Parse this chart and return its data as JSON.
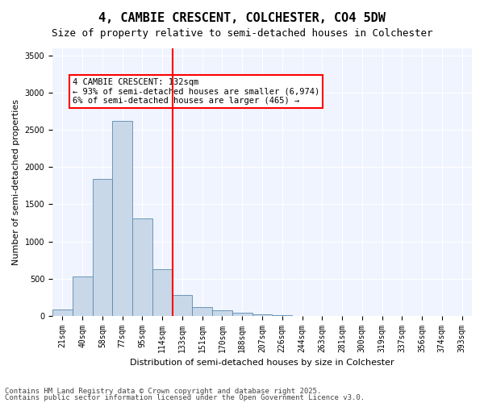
{
  "title1": "4, CAMBIE CRESCENT, COLCHESTER, CO4 5DW",
  "title2": "Size of property relative to semi-detached houses in Colchester",
  "xlabel": "Distribution of semi-detached houses by size in Colchester",
  "ylabel": "Number of semi-detached properties",
  "bar_color": "#c8d8e8",
  "bar_edge_color": "#5a8ab0",
  "categories": [
    "21sqm",
    "40sqm",
    "58sqm",
    "77sqm",
    "95sqm",
    "114sqm",
    "133sqm",
    "151sqm",
    "170sqm",
    "188sqm",
    "207sqm",
    "226sqm",
    "244sqm",
    "263sqm",
    "281sqm",
    "300sqm",
    "319sqm",
    "337sqm",
    "356sqm",
    "374sqm",
    "393sqm"
  ],
  "values": [
    80,
    530,
    1840,
    2620,
    1310,
    630,
    280,
    120,
    70,
    40,
    15,
    5,
    2,
    1,
    0,
    0,
    0,
    0,
    0,
    0,
    0
  ],
  "property_line_x": 6,
  "property_size": "132sqm",
  "annotation_text": "4 CAMBIE CRESCENT: 132sqm\n← 93% of semi-detached houses are smaller (6,974)\n6% of semi-detached houses are larger (465) →",
  "annotation_box_color": "white",
  "annotation_box_edge_color": "red",
  "vline_color": "red",
  "ylim": [
    0,
    3600
  ],
  "yticks": [
    0,
    500,
    1000,
    1500,
    2000,
    2500,
    3000,
    3500
  ],
  "background_color": "#f0f4ff",
  "footer1": "Contains HM Land Registry data © Crown copyright and database right 2025.",
  "footer2": "Contains public sector information licensed under the Open Government Licence v3.0.",
  "title_fontsize": 11,
  "subtitle_fontsize": 9,
  "axis_label_fontsize": 8,
  "tick_fontsize": 7,
  "annotation_fontsize": 7.5,
  "footer_fontsize": 6.5
}
